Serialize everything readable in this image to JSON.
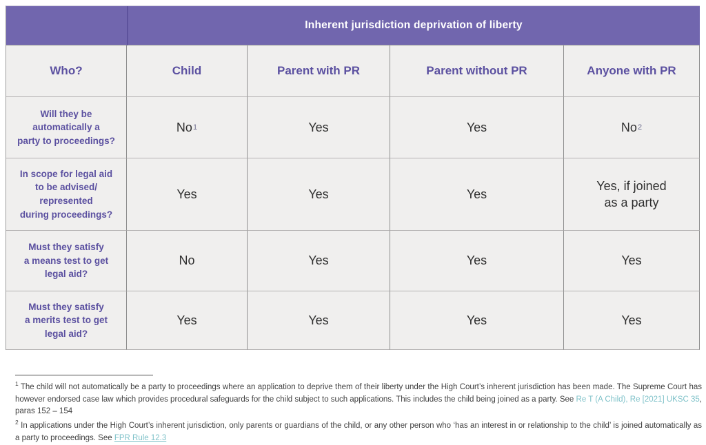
{
  "title": "Inherent jurisdiction deprivation of liberty",
  "colors": {
    "band_purple": "#7166ae",
    "heading_purple": "#5b50a0",
    "cell_background": "#f0efee",
    "grid_line": "#8d8d8d",
    "body_text": "#2f2f2f",
    "link_teal": "#7fc2c9"
  },
  "table": {
    "corner_label": "Who?",
    "columns": [
      "Child",
      "Parent with PR",
      "Parent without PR",
      "Anyone with PR"
    ],
    "rows": [
      {
        "question": "Will they be\nautomatically a\nparty to proceedings?",
        "answers": [
          {
            "text": "No",
            "sup": "1"
          },
          {
            "text": "Yes"
          },
          {
            "text": "Yes"
          },
          {
            "text": "No",
            "sup": "2"
          }
        ]
      },
      {
        "question": "In scope for legal aid\nto be advised/\nrepresented\nduring proceedings?",
        "answers": [
          {
            "text": "Yes"
          },
          {
            "text": "Yes"
          },
          {
            "text": "Yes"
          },
          {
            "text": "Yes, if joined\nas a party"
          }
        ]
      },
      {
        "question": "Must they satisfy\na means test to get\nlegal aid?",
        "answers": [
          {
            "text": "No"
          },
          {
            "text": "Yes"
          },
          {
            "text": "Yes"
          },
          {
            "text": "Yes"
          }
        ]
      },
      {
        "question": "Must they satisfy\na merits test to get\nlegal aid?",
        "answers": [
          {
            "text": "Yes"
          },
          {
            "text": "Yes"
          },
          {
            "text": "Yes"
          },
          {
            "text": "Yes"
          }
        ]
      }
    ]
  },
  "footnotes": [
    {
      "marker": "1",
      "segments": [
        {
          "type": "text",
          "value": " The child will not automatically be a party to proceedings where an application to deprive them of their liberty under the High Court’s inherent jurisdiction has been made. The Supreme Court has however endorsed case law which provides procedural safeguards for the child subject to such applications. This includes the child being joined as a party. See "
        },
        {
          "type": "link",
          "value": "Re T (A Child), Re [2021] UKSC 35"
        },
        {
          "type": "text",
          "value": ", paras 152 – 154"
        }
      ]
    },
    {
      "marker": "2",
      "segments": [
        {
          "type": "text",
          "value": " In applications under the High Court’s inherent jurisdiction, only parents or guardians of the child, or any other person who ‘has an interest in or relationship to the child’ is joined automatically as a party to proceedings. See "
        },
        {
          "type": "link_underline",
          "value": "FPR Rule 12.3"
        }
      ]
    }
  ]
}
